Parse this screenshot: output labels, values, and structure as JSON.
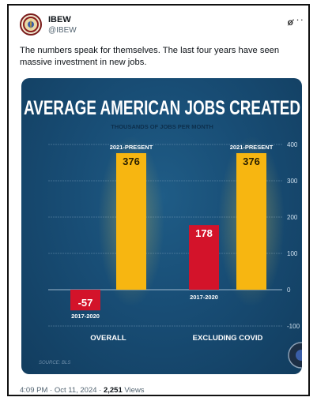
{
  "tweet": {
    "author_name": "IBEW",
    "handle": "@IBEW",
    "text": "The numbers speak for themselves. The last four years have seen massive investment in new jobs.",
    "time": "4:09 PM · Oct 11, 2024 · ",
    "views_count": "2,251",
    "views_label": " Views",
    "x_icon": "ø",
    "more_icon": "···"
  },
  "chart_data": {
    "type": "bar",
    "title": "AVERAGE AMERICAN JOBS CREATED",
    "subtitle": "THOUSANDS OF JOBS PER MONTH",
    "categories": [
      "OVERALL",
      "EXCLUDING COVID"
    ],
    "series": [
      {
        "name": "2017-2020",
        "values": [
          -57,
          178
        ],
        "color": "#d3132a"
      },
      {
        "name": "2021-PRESENT",
        "values": [
          376,
          376
        ],
        "color": "#f7b611"
      }
    ],
    "ylim": [
      -100,
      400
    ],
    "yticks": [
      400,
      300,
      200,
      100,
      0,
      -100
    ],
    "source": "SOURCE: BLS",
    "grid": true
  }
}
